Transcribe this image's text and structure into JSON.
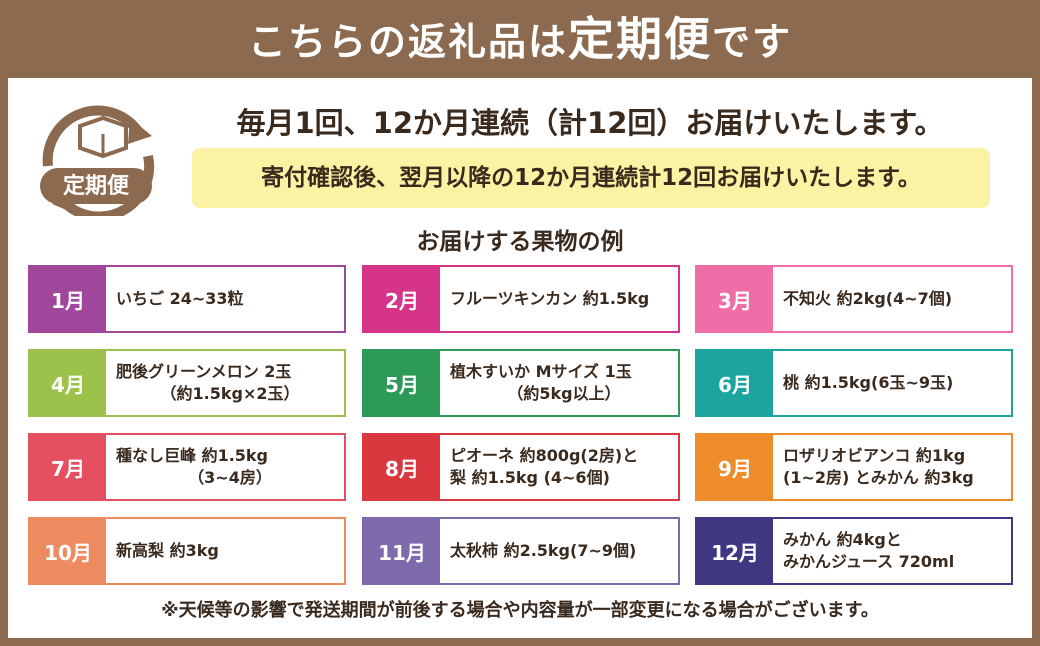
{
  "header": {
    "title_parts": [
      "こちらの返礼品は",
      "定期便",
      "です"
    ]
  },
  "icon": {
    "label": "定期便"
  },
  "headline": "毎月1回、12か月連続（計12回）お届けいたします。",
  "note": "寄付確認後、翌月以降の12か月連続計12回お届けいたします。",
  "section_title": "お届けする果物の例",
  "months": [
    {
      "month": "1月",
      "lines": [
        "いちご 24~33粒"
      ],
      "color": "#a1479b"
    },
    {
      "month": "2月",
      "lines": [
        "フルーツキンカン 約1.5kg"
      ],
      "color": "#d63489"
    },
    {
      "month": "3月",
      "lines": [
        "不知火 約2kg(4~7個)"
      ],
      "color": "#ef6ea7"
    },
    {
      "month": "4月",
      "lines": [
        "肥後グリーンメロン 2玉",
        "（約1.5kg×2玉）"
      ],
      "color": "#9dc24b"
    },
    {
      "month": "5月",
      "lines": [
        "植木すいか Mサイズ 1玉",
        "（約5kg以上）"
      ],
      "color": "#2e9a57"
    },
    {
      "month": "6月",
      "lines": [
        "桃 約1.5kg(6玉~9玉)"
      ],
      "color": "#1ca4a1"
    },
    {
      "month": "7月",
      "lines": [
        "種なし巨峰 約1.5kg",
        "（3~4房）"
      ],
      "color": "#e4505f"
    },
    {
      "month": "8月",
      "lines": [
        "ピオーネ 約800g(2房)と",
        "梨 約1.5kg (4~6個)"
      ],
      "color": "#d9383f"
    },
    {
      "month": "9月",
      "lines": [
        "ロザリオビアンコ 約1kg",
        "(1~2房) とみかん 約3kg"
      ],
      "color": "#ee8b2b"
    },
    {
      "month": "10月",
      "lines": [
        "新高梨 約3kg"
      ],
      "color": "#ef8b60"
    },
    {
      "month": "11月",
      "lines": [
        "太秋柿 約2.5kg(7~9個)"
      ],
      "color": "#7c6aab"
    },
    {
      "month": "12月",
      "lines": [
        "みかん 約4kgと",
        "みかんジュース 720ml"
      ],
      "color": "#3f3782"
    }
  ],
  "footnote": "※天候等の影響で発送期間が前後する場合や内容量が一部変更になる場合がございます。"
}
